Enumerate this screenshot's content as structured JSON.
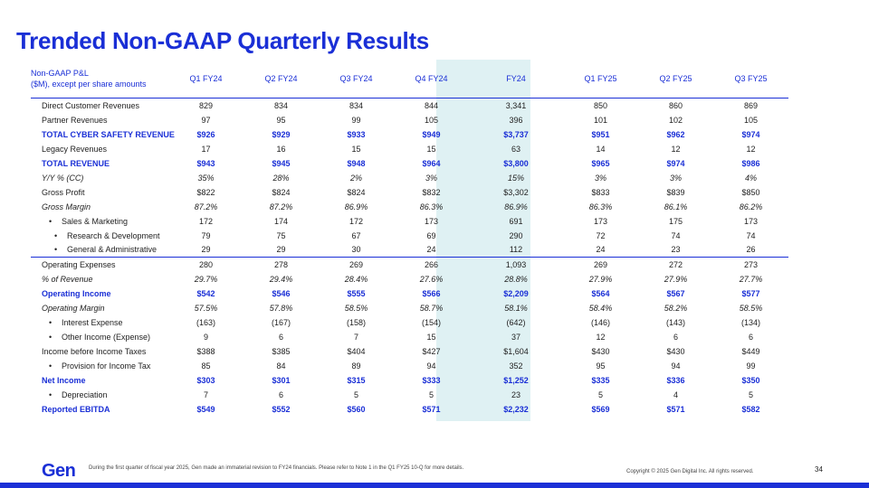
{
  "title": "Trended Non-GAAP Quarterly Results",
  "table": {
    "header_line1": "Non-GAAP P&L",
    "header_line2": "($M), except per share amounts",
    "columns": [
      "Q1 FY24",
      "Q2 FY24",
      "Q3 FY24",
      "Q4 FY24",
      "FY24",
      "Q1 FY25",
      "Q2 FY25",
      "Q3 FY25"
    ],
    "rows": [
      {
        "label": "Direct Customer Revenues",
        "values": [
          "829",
          "834",
          "834",
          "844",
          "3,341",
          "850",
          "860",
          "869"
        ]
      },
      {
        "label": "Partner Revenues",
        "values": [
          "97",
          "95",
          "99",
          "105",
          "396",
          "101",
          "102",
          "105"
        ]
      },
      {
        "label": "TOTAL CYBER SAFETY REVENUE",
        "values": [
          "$926",
          "$929",
          "$933",
          "$949",
          "$3,737",
          "$951",
          "$962",
          "$974"
        ]
      },
      {
        "label": "Legacy Revenues",
        "values": [
          "17",
          "16",
          "15",
          "15",
          "63",
          "14",
          "12",
          "12"
        ]
      },
      {
        "label": "TOTAL REVENUE",
        "values": [
          "$943",
          "$945",
          "$948",
          "$964",
          "$3,800",
          "$965",
          "$974",
          "$986"
        ]
      },
      {
        "label": "Y/Y % (CC)",
        "values": [
          "35%",
          "28%",
          "2%",
          "3%",
          "15%",
          "3%",
          "3%",
          "4%"
        ]
      },
      {
        "label": "Gross Profit",
        "values": [
          "$822",
          "$824",
          "$824",
          "$832",
          "$3,302",
          "$833",
          "$839",
          "$850"
        ]
      },
      {
        "label": "Gross Margin",
        "values": [
          "87.2%",
          "87.2%",
          "86.9%",
          "86.3%",
          "86.9%",
          "86.3%",
          "86.1%",
          "86.2%"
        ]
      },
      {
        "label": "Sales & Marketing",
        "values": [
          "172",
          "174",
          "172",
          "173",
          "691",
          "173",
          "175",
          "173"
        ]
      },
      {
        "label": "Research & Development",
        "values": [
          "79",
          "75",
          "67",
          "69",
          "290",
          "72",
          "74",
          "74"
        ]
      },
      {
        "label": "General & Administrative",
        "values": [
          "29",
          "29",
          "30",
          "24",
          "112",
          "24",
          "23",
          "26"
        ]
      },
      {
        "label": "Operating Expenses",
        "values": [
          "280",
          "278",
          "269",
          "266",
          "1,093",
          "269",
          "272",
          "273"
        ]
      },
      {
        "label": "% of Revenue",
        "values": [
          "29.7%",
          "29.4%",
          "28.4%",
          "27.6%",
          "28.8%",
          "27.9%",
          "27.9%",
          "27.7%"
        ]
      },
      {
        "label": "Operating Income",
        "values": [
          "$542",
          "$546",
          "$555",
          "$566",
          "$2,209",
          "$564",
          "$567",
          "$577"
        ]
      },
      {
        "label": "Operating Margin",
        "values": [
          "57.5%",
          "57.8%",
          "58.5%",
          "58.7%",
          "58.1%",
          "58.4%",
          "58.2%",
          "58.5%"
        ]
      },
      {
        "label": "Interest Expense",
        "values": [
          "(163)",
          "(167)",
          "(158)",
          "(154)",
          "(642)",
          "(146)",
          "(143)",
          "(134)"
        ]
      },
      {
        "label": "Other Income (Expense)",
        "values": [
          "9",
          "6",
          "7",
          "15",
          "37",
          "12",
          "6",
          "6"
        ]
      },
      {
        "label": "Income before Income Taxes",
        "values": [
          "$388",
          "$385",
          "$404",
          "$427",
          "$1,604",
          "$430",
          "$430",
          "$449"
        ]
      },
      {
        "label": "Provision for Income Tax",
        "values": [
          "85",
          "84",
          "89",
          "94",
          "352",
          "95",
          "94",
          "99"
        ]
      },
      {
        "label": "Net Income",
        "values": [
          "$303",
          "$301",
          "$315",
          "$333",
          "$1,252",
          "$335",
          "$336",
          "$350"
        ]
      },
      {
        "label": "Depreciation",
        "values": [
          "7",
          "6",
          "5",
          "5",
          "23",
          "5",
          "4",
          "5"
        ]
      },
      {
        "label": "Reported EBITDA",
        "values": [
          "$549",
          "$552",
          "$560",
          "$571",
          "$2,232",
          "$569",
          "$571",
          "$582"
        ]
      }
    ]
  },
  "footer": {
    "logo": "Gen",
    "footnote": "During the first quarter of fiscal year 2025, Gen made an immaterial revision to FY24 financials. Please refer to Note 1 in the Q1 FY25 10-Q for more details.",
    "copyright": "Copyright © 2025 Gen Digital Inc. All rights reserved.",
    "page_number": "34"
  },
  "colors": {
    "accent": "#1a2fd6",
    "fy_highlight": "#dff1f3"
  }
}
